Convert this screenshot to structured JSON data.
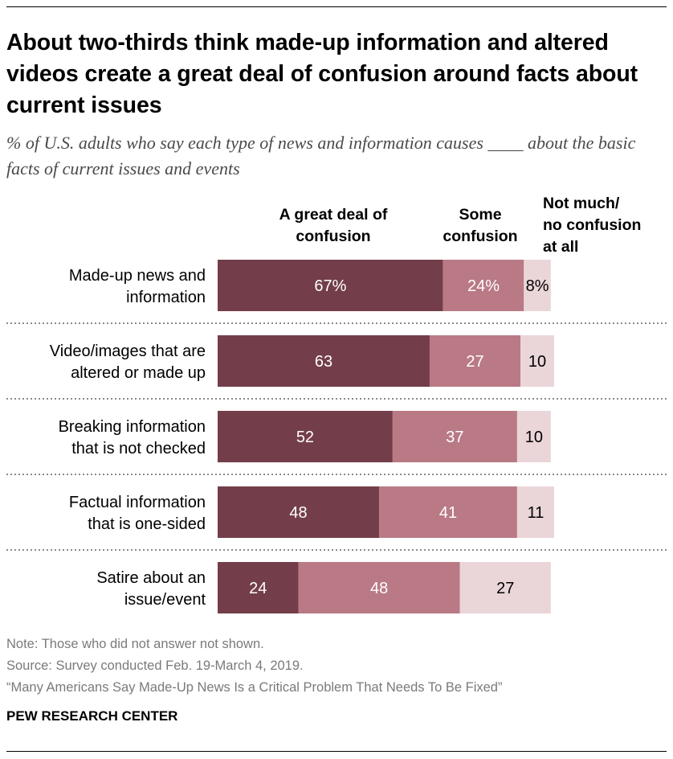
{
  "title": "About two-thirds think made-up information and altered videos create a great deal of confusion around facts about current issues",
  "subtitle": "% of U.S. adults who say each type of news and information causes ____ about the basic facts of current issues and events",
  "chart_data": {
    "type": "bar",
    "orientation": "horizontal-stacked",
    "categories": [
      [
        "Made-up news and",
        "information"
      ],
      [
        "Video/images that are",
        "altered or made up"
      ],
      [
        "Breaking information",
        "that is not checked"
      ],
      [
        "Factual information",
        "that is one-sided"
      ],
      [
        "Satire about an",
        "issue/event"
      ]
    ],
    "series": [
      {
        "name": "A great deal of confusion",
        "name_lines": [
          "A great deal of",
          "confusion"
        ],
        "values": [
          67,
          63,
          52,
          48,
          24
        ],
        "labels": [
          "67%",
          "63",
          "52",
          "48",
          "24"
        ],
        "color": "#733e49",
        "label_color": "#ffffff"
      },
      {
        "name": "Some confusion",
        "name_lines": [
          "Some",
          "confusion"
        ],
        "values": [
          24,
          27,
          37,
          41,
          48
        ],
        "labels": [
          "24%",
          "27",
          "37",
          "41",
          "48"
        ],
        "color": "#b97a85",
        "label_color": "#ffffff"
      },
      {
        "name": "Not much/ no confusion at all",
        "name_lines": [
          "Not much/",
          "no confusion",
          "at all"
        ],
        "values": [
          8,
          10,
          10,
          11,
          27
        ],
        "labels": [
          "8%",
          "10",
          "10",
          "11",
          "27"
        ],
        "color": "#ead5d8",
        "label_color": "#000000"
      }
    ],
    "xlim": [
      0,
      100
    ]
  },
  "notes": {
    "note": "Note: Those who did not answer not shown.",
    "source": "Source: Survey conducted Feb. 19-March 4, 2019.",
    "report": "“Many Americans Say Made-Up News Is a Critical Problem That Needs To Be Fixed”"
  },
  "brand": "PEW RESEARCH CENTER"
}
